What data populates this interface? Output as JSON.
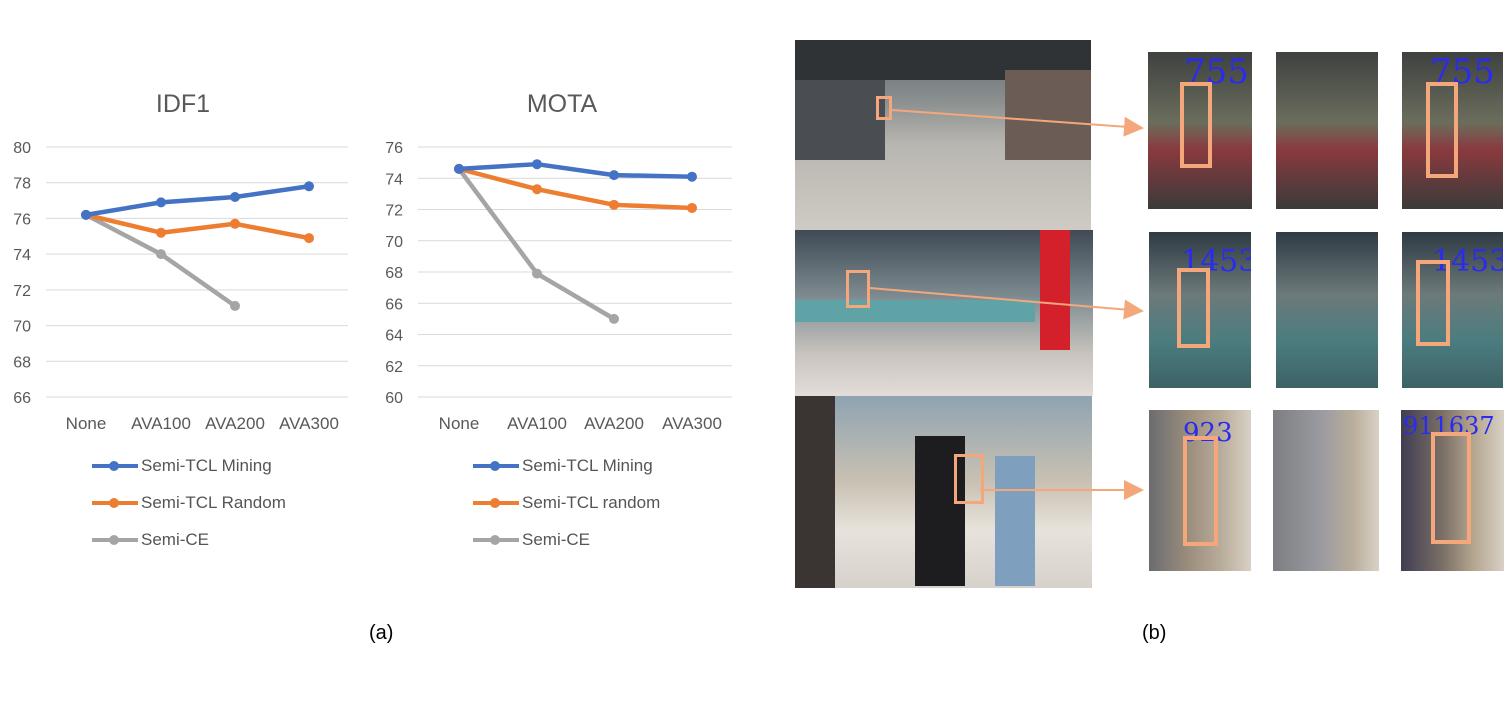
{
  "chart_data": [
    {
      "type": "line",
      "title": "IDF1",
      "categories": [
        "None",
        "AVA100",
        "AVA200",
        "AVA300"
      ],
      "ylim": [
        66,
        80
      ],
      "yticks": [
        66,
        68,
        70,
        72,
        74,
        76,
        78,
        80
      ],
      "grid": true,
      "legend_position": "bottom",
      "series": [
        {
          "name": "Semi-TCL Mining",
          "color": "#4472c4",
          "values": [
            76.2,
            76.9,
            77.2,
            77.8
          ]
        },
        {
          "name": "Semi-TCL Random",
          "color": "#ed7d31",
          "values": [
            76.2,
            75.2,
            75.7,
            74.9
          ]
        },
        {
          "name": "Semi-CE",
          "color": "#a5a5a5",
          "values": [
            76.2,
            74.0,
            71.1,
            null
          ]
        }
      ]
    },
    {
      "type": "line",
      "title": "MOTA",
      "categories": [
        "None",
        "AVA100",
        "AVA200",
        "AVA300"
      ],
      "ylim": [
        60,
        76
      ],
      "yticks": [
        60,
        62,
        64,
        66,
        68,
        70,
        72,
        74,
        76
      ],
      "grid": true,
      "legend_position": "bottom",
      "series": [
        {
          "name": "Semi-TCL Mining",
          "color": "#4472c4",
          "values": [
            74.6,
            74.9,
            74.2,
            74.1
          ]
        },
        {
          "name": "Semi-TCL random",
          "color": "#ed7d31",
          "values": [
            74.6,
            73.3,
            72.3,
            72.1
          ]
        },
        {
          "name": "Semi-CE",
          "color": "#a5a5a5",
          "values": [
            74.6,
            67.9,
            65.0,
            null
          ]
        }
      ]
    }
  ],
  "captions": {
    "a": "(a)",
    "b": "(b)"
  },
  "figure_b": {
    "highlight_color": "#f4a77a",
    "id_color": "#2b2bf0",
    "rows": [
      {
        "crop_ids": [
          "755",
          "",
          "755"
        ]
      },
      {
        "crop_ids": [
          "1453",
          "",
          "1453"
        ]
      },
      {
        "crop_ids": [
          "923",
          "",
          "911637"
        ]
      }
    ]
  }
}
